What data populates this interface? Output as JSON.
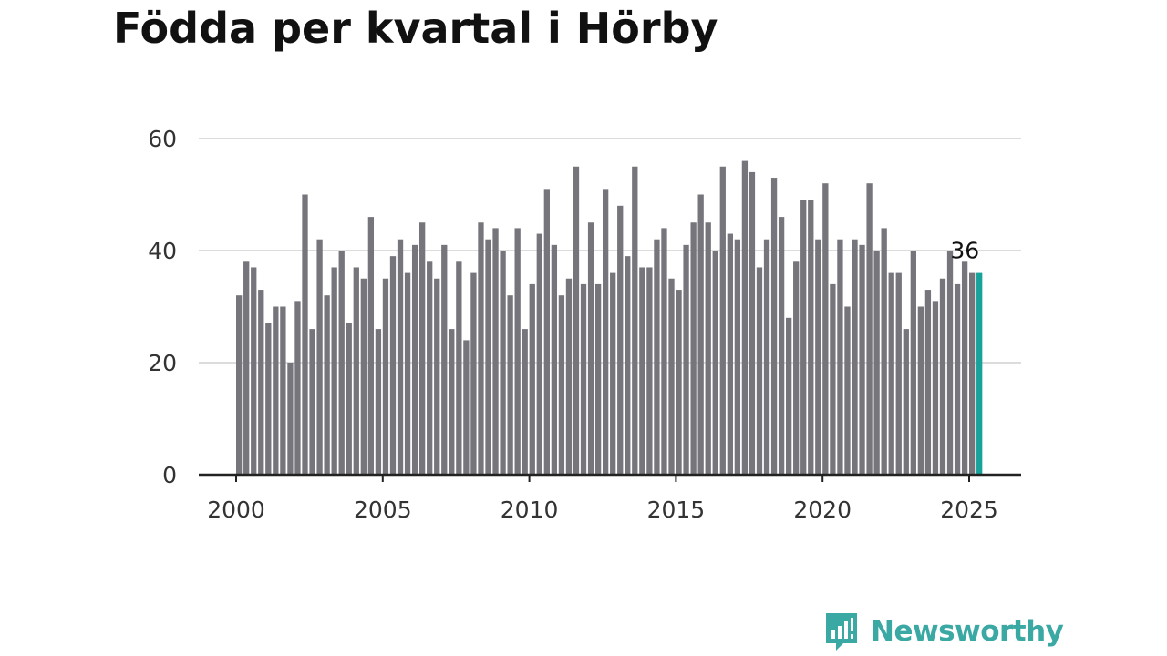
{
  "title": "Födda per kvartal i Hörby",
  "brand": {
    "name": "Newsworthy",
    "icon": "newsworthy-logo-icon",
    "color": "#3aa8a3"
  },
  "chart_data": {
    "type": "bar",
    "title": "Födda per kvartal i Hörby",
    "xlabel": "",
    "ylabel": "",
    "x_ticks": [
      "2000",
      "2005",
      "2010",
      "2015",
      "2020",
      "2025"
    ],
    "y_ticks": [
      "0",
      "20",
      "40",
      "60"
    ],
    "ylim": [
      0,
      60
    ],
    "grid": true,
    "bar_color": "#76757b",
    "highlight_color": "#17a39b",
    "highlight_label": "36",
    "series": [
      {
        "start": "2000 Q1",
        "values": [
          32,
          38,
          37,
          33,
          27,
          30,
          30,
          20,
          31,
          50,
          26,
          42,
          32,
          37,
          40,
          27,
          37,
          35,
          46,
          26,
          35,
          39,
          42,
          36,
          41,
          45,
          38,
          35,
          41,
          26,
          38,
          24,
          36,
          45,
          42,
          44,
          40,
          32,
          44,
          26,
          34,
          43,
          51,
          41,
          32,
          35,
          55,
          34,
          45,
          34,
          51,
          36,
          48,
          39,
          55,
          37,
          37,
          42,
          44,
          35,
          33,
          41,
          45,
          50,
          45,
          40,
          55,
          43,
          42,
          56,
          54,
          37,
          42,
          53,
          46,
          28,
          38,
          49,
          49,
          42,
          52,
          34,
          42,
          30,
          42,
          41,
          52,
          40,
          44,
          36,
          36,
          26,
          40,
          30,
          33,
          31,
          35,
          40,
          34,
          38,
          36,
          36
        ]
      }
    ]
  }
}
